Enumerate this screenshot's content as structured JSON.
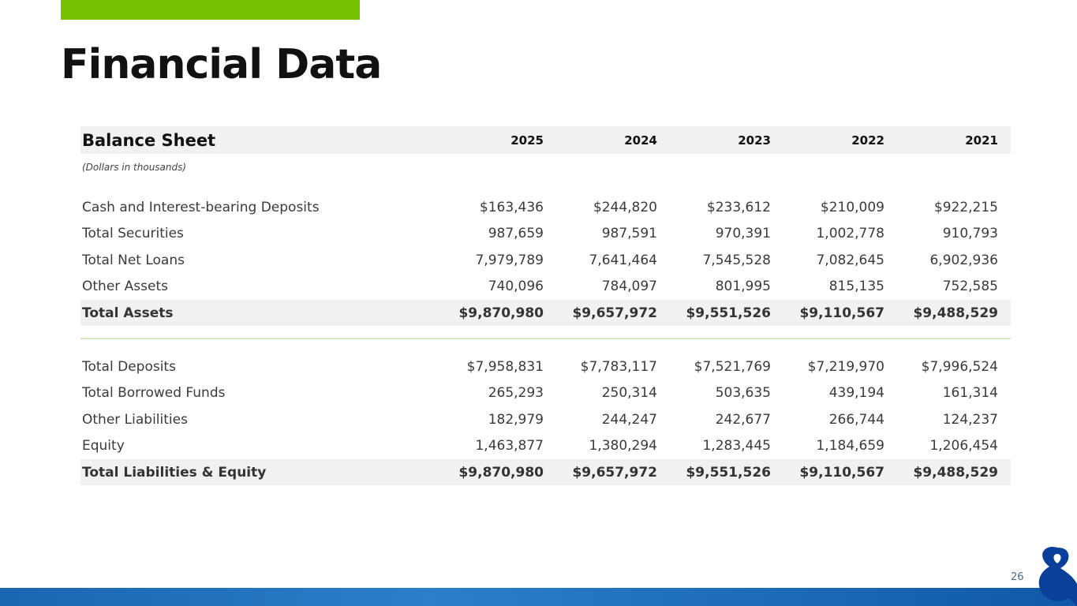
{
  "title": "Financial Data",
  "table": {
    "heading": "Balance Sheet",
    "years": [
      "2025",
      "2024",
      "2023",
      "2022",
      "2021"
    ],
    "note": "(Dollars in thousands)",
    "assets": [
      {
        "label": "Cash and Interest-bearing Deposits",
        "values": [
          "$163,436",
          "$244,820",
          "$233,612",
          "$210,009",
          "$922,215"
        ]
      },
      {
        "label": "Total Securities",
        "values": [
          "987,659",
          "987,591",
          "970,391",
          "1,002,778",
          "910,793"
        ]
      },
      {
        "label": "Total Net Loans",
        "values": [
          "7,979,789",
          "7,641,464",
          "7,545,528",
          "7,082,645",
          "6,902,936"
        ]
      },
      {
        "label": "Other Assets",
        "values": [
          "740,096",
          "784,097",
          "801,995",
          "815,135",
          "752,585"
        ]
      },
      {
        "label": "Total Assets",
        "values": [
          "$9,870,980",
          "$9,657,972",
          "$9,551,526",
          "$9,110,567",
          "$9,488,529"
        ],
        "total": true
      }
    ],
    "liabilities": [
      {
        "label": "Total Deposits",
        "values": [
          "$7,958,831",
          "$7,783,117",
          "$7,521,769",
          "$7,219,970",
          "$7,996,524"
        ]
      },
      {
        "label": "Total Borrowed Funds",
        "values": [
          "265,293",
          "250,314",
          "503,635",
          "439,194",
          "161,314"
        ]
      },
      {
        "label": "Other Liabilities",
        "values": [
          "182,979",
          "244,247",
          "242,677",
          "266,744",
          "124,237"
        ]
      },
      {
        "label": "Equity",
        "values": [
          "1,463,877",
          "1,380,294",
          "1,283,445",
          "1,184,659",
          "1,206,454"
        ]
      },
      {
        "label": "Total Liabilities & Equity",
        "values": [
          "$9,870,980",
          "$9,657,972",
          "$9,551,526",
          "$9,110,567",
          "$9,488,529"
        ],
        "total": true
      }
    ]
  },
  "page_number": "26",
  "colors": {
    "accent": "#76c200",
    "footer": "#1a66b0",
    "logo": "#0a3f9a"
  }
}
